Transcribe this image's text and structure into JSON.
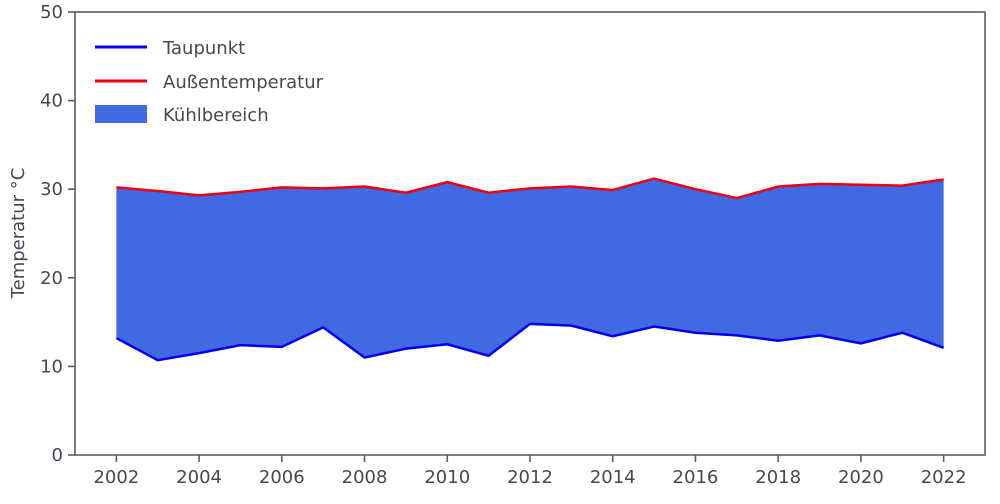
{
  "chart_data": {
    "type": "area",
    "title": "",
    "xlabel": "",
    "ylabel": "Temperatur °C",
    "xlim": [
      2001,
      2023
    ],
    "ylim": [
      0,
      50
    ],
    "xticks": [
      2002,
      2004,
      2006,
      2008,
      2010,
      2012,
      2014,
      2016,
      2018,
      2020,
      2022
    ],
    "yticks": [
      0,
      10,
      20,
      30,
      40,
      50
    ],
    "x": [
      2002,
      2003,
      2004,
      2005,
      2006,
      2007,
      2008,
      2009,
      2010,
      2011,
      2012,
      2013,
      2014,
      2015,
      2016,
      2017,
      2018,
      2019,
      2020,
      2021,
      2022
    ],
    "series": [
      {
        "name": "Taupunkt",
        "color": "#0000ee",
        "values": [
          13.2,
          10.7,
          11.5,
          12.4,
          12.2,
          14.4,
          11.0,
          12.0,
          12.5,
          11.2,
          14.8,
          14.6,
          13.4,
          14.5,
          13.8,
          13.5,
          12.9,
          13.5,
          12.6,
          13.8,
          12.1
        ]
      },
      {
        "name": "Außentemperatur",
        "color": "#ee0011",
        "values": [
          30.2,
          29.8,
          29.3,
          29.7,
          30.2,
          30.1,
          30.3,
          29.6,
          30.8,
          29.6,
          30.1,
          30.3,
          29.9,
          31.2,
          30.0,
          29.0,
          30.3,
          30.6,
          30.5,
          30.4,
          31.1
        ]
      }
    ],
    "fill": {
      "name": "Kühlbereich",
      "color": "#4169e1",
      "between": [
        "Taupunkt",
        "Außentemperatur"
      ]
    },
    "legend": {
      "position": "upper-left",
      "frame": false,
      "entries": [
        "Taupunkt",
        "Außentemperatur",
        "Kühlbereich"
      ]
    },
    "colors": {
      "axis_text": "#474756",
      "spine": "#5c5c66",
      "background": "#ffffff"
    },
    "grid": false
  }
}
